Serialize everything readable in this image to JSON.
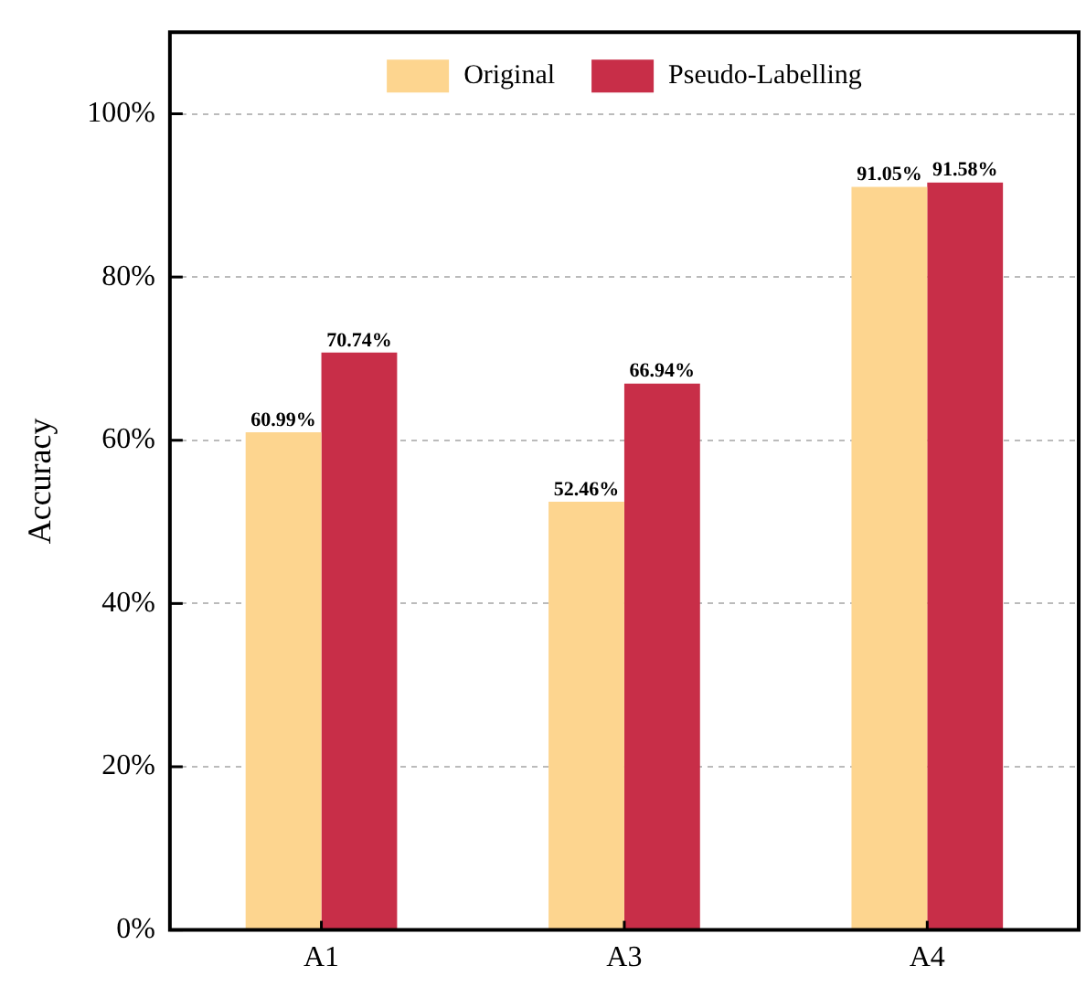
{
  "chart_data": {
    "type": "bar",
    "ylabel": "Accuracy",
    "categories": [
      "A1",
      "A3",
      "A4"
    ],
    "series": [
      {
        "name": "Original",
        "color": "#fdd58f",
        "values": [
          60.99,
          52.46,
          91.05
        ],
        "value_labels": [
          "60.99%",
          "52.46%",
          "91.05%"
        ]
      },
      {
        "name": "Pseudo-Labelling",
        "color": "#c82e48",
        "values": [
          70.74,
          66.94,
          91.58
        ],
        "value_labels": [
          "70.74%",
          "66.94%",
          "91.58%"
        ]
      }
    ],
    "ylim": [
      0,
      110
    ],
    "yticks": [
      {
        "value": 0,
        "label": "0%"
      },
      {
        "value": 20,
        "label": "20%"
      },
      {
        "value": 40,
        "label": "40%"
      },
      {
        "value": 60,
        "label": "60%"
      },
      {
        "value": 80,
        "label": "80%"
      },
      {
        "value": 100,
        "label": "100%"
      }
    ],
    "grid": "y",
    "legend": "top"
  }
}
